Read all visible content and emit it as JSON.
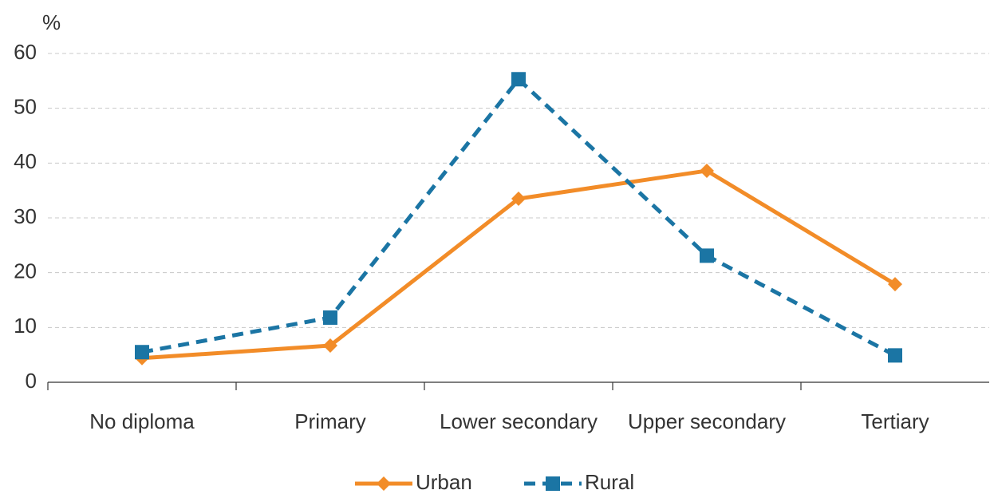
{
  "chart_data": {
    "type": "line",
    "y_axis_label": "%",
    "categories": [
      "No diploma",
      "Primary",
      "Lower secondary",
      "Upper secondary",
      "Tertiary"
    ],
    "series": [
      {
        "name": "Urban",
        "color": "#f28c28",
        "marker": "diamond",
        "dashed": false,
        "values": [
          4.4,
          6.7,
          33.5,
          38.6,
          17.9
        ]
      },
      {
        "name": "Rural",
        "color": "#1b75a4",
        "marker": "square",
        "dashed": true,
        "values": [
          5.5,
          11.8,
          55.3,
          23.1,
          4.9
        ]
      }
    ],
    "ylim": [
      0,
      60
    ],
    "yticks": [
      0,
      10,
      20,
      30,
      40,
      50,
      60
    ],
    "grid": true,
    "legend": "bottom"
  }
}
